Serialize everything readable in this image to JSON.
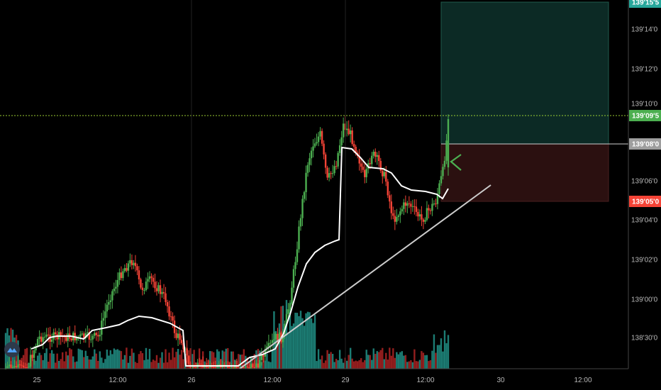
{
  "chart_data": {
    "type": "candlestick",
    "y_unit_note": "price in points; axis shows 1390'xx'y format",
    "ylim": [
      138.28,
      139.158
    ],
    "y_ticks": [
      {
        "value": 139.14,
        "label": "139'14'0"
      },
      {
        "value": 139.12,
        "label": "139'12'0"
      },
      {
        "value": 139.1,
        "label": "139'10'0"
      },
      {
        "value": 139.06,
        "label": "139'06'0"
      },
      {
        "value": 139.04,
        "label": "139'04'0"
      },
      {
        "value": 139.02,
        "label": "139'02'0"
      },
      {
        "value": 139.0,
        "label": "139'00'0"
      },
      {
        "value": 138.3,
        "label": "138'30'0"
      }
    ],
    "x_ticks": [
      "25",
      "12:00",
      "26",
      "12:00",
      "29",
      "12:00",
      "30",
      "12:00"
    ],
    "price_tags": [
      {
        "label": "139'15'5",
        "value": 139.155,
        "color": "#26a69a"
      },
      {
        "label": "139'09'5",
        "value": 139.095,
        "color": "#4caf50"
      },
      {
        "label": "139'08'0",
        "value": 139.08,
        "color": "#9e9e9e"
      },
      {
        "label": "139'05'0",
        "value": 139.05,
        "color": "#f44336"
      }
    ],
    "position_tool": {
      "entry": 139.08,
      "target": 139.155,
      "stop": 139.05,
      "profit_color": "#0c2a25",
      "loss_color": "#2b1010"
    },
    "last_price_line": 139.095,
    "session_breaks_x": [
      "26",
      "29"
    ],
    "colors": {
      "up": "#4caf50",
      "down": "#f44336",
      "vwap": "#ffffff",
      "trendline": "#cccccc",
      "volume_up": "#26a69a",
      "volume_down": "#c62828"
    },
    "n_bars": 250
  },
  "branding": {
    "logo_icon": "tradingview-logo-icon"
  }
}
